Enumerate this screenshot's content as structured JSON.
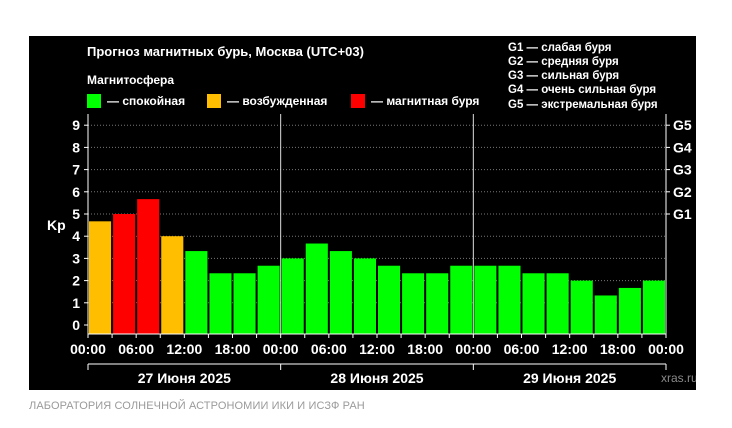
{
  "caption": "ЛАБОРАТОРИЯ СОЛНЕЧНОЙ АСТРОНОМИИ ИКИ И ИСЗФ РАН",
  "chart_data": {
    "type": "bar",
    "title": "Прогноз магнитных бурь, Москва (UTC+03)",
    "legend_title": "Магнитосфера",
    "legend": [
      {
        "label": "— спокойная",
        "color": "#00ff00"
      },
      {
        "label": "— возбужденная",
        "color": "#ffbf00"
      },
      {
        "label": "— магнитная буря",
        "color": "#ff0000"
      }
    ],
    "storm_scale": [
      "G1 — слабая буря",
      "G2 — средняя буря",
      "G3 — сильная буря",
      "G4 — очень сильная буря",
      "G5 — экстремальная буря"
    ],
    "ylabel": "Kp",
    "ylim": [
      0,
      9
    ],
    "yticks": [
      "0",
      "1",
      "2",
      "3",
      "4",
      "5",
      "6",
      "7",
      "8",
      "9"
    ],
    "right_ticks": [
      {
        "label": "G1",
        "value": 5
      },
      {
        "label": "G2",
        "value": 6
      },
      {
        "label": "G3",
        "value": 7
      },
      {
        "label": "G4",
        "value": 8
      },
      {
        "label": "G5",
        "value": 9
      }
    ],
    "xticks": [
      "00:00",
      "06:00",
      "12:00",
      "18:00",
      "00:00",
      "06:00",
      "12:00",
      "18:00",
      "00:00",
      "06:00",
      "12:00",
      "18:00",
      "00:00"
    ],
    "days": [
      "27 Июня 2025",
      "28 Июня 2025",
      "29 Июня 2025"
    ],
    "values": [
      4.67,
      5.0,
      5.67,
      4.0,
      3.33,
      2.33,
      2.33,
      2.67,
      3.0,
      3.67,
      3.33,
      3.0,
      2.67,
      2.33,
      2.33,
      2.67,
      2.67,
      2.67,
      2.33,
      2.33,
      2.0,
      1.33,
      1.67,
      2.0
    ],
    "colors": [
      "#ffbf00",
      "#ff0000",
      "#ff0000",
      "#ffbf00",
      "#00ff00",
      "#00ff00",
      "#00ff00",
      "#00ff00",
      "#00ff00",
      "#00ff00",
      "#00ff00",
      "#00ff00",
      "#00ff00",
      "#00ff00",
      "#00ff00",
      "#00ff00",
      "#00ff00",
      "#00ff00",
      "#00ff00",
      "#00ff00",
      "#00ff00",
      "#00ff00",
      "#00ff00",
      "#00ff00"
    ],
    "grid": true,
    "watermark": "xras.ru"
  }
}
